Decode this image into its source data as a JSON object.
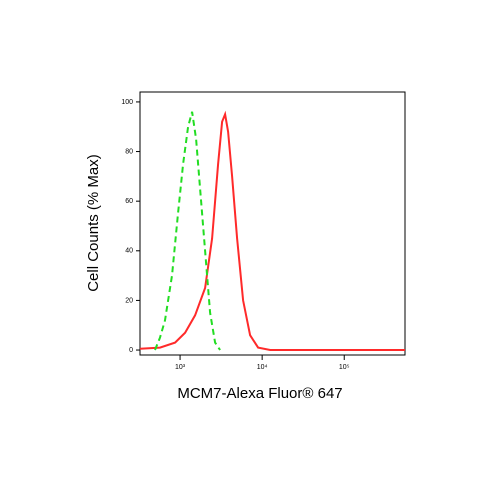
{
  "chart_data": {
    "type": "line",
    "xlabel": "MCM7-Alexa Fluor® 647",
    "ylabel": "Cell Counts (% Max)",
    "xscale": "log",
    "xlim": [
      325,
      550000
    ],
    "ylim": [
      -2,
      104
    ],
    "xticks": [
      {
        "value": 1000,
        "label": "10³"
      },
      {
        "value": 10000,
        "label": "10⁴"
      },
      {
        "value": 100000,
        "label": "10⁵"
      }
    ],
    "yticks": [
      0,
      20,
      40,
      60,
      80,
      100
    ],
    "series": [
      {
        "color": "#ff2a2a",
        "linestyle": "solid",
        "x": [
          325,
          570,
          869,
          1151,
          1524,
          2018,
          2456,
          2905,
          3251,
          3538,
          3849,
          4305,
          4955,
          5866,
          7141,
          8925,
          12530,
          29050,
          118300,
          550000
        ],
        "values": [
          0.5,
          1,
          3,
          7,
          14,
          25,
          45,
          75,
          92,
          95,
          88,
          70,
          45,
          20,
          6,
          1,
          0,
          0,
          0,
          0
        ]
      },
      {
        "color": "#22dd22",
        "linestyle": "dashed",
        "x": [
          495,
          570,
          656,
          798,
          945,
          1088,
          1253,
          1401,
          1567,
          1754,
          2018,
          2323,
          2673,
          3077
        ],
        "values": [
          0,
          5,
          12,
          30,
          55,
          75,
          90,
          96,
          85,
          65,
          40,
          15,
          3,
          0
        ]
      }
    ]
  }
}
